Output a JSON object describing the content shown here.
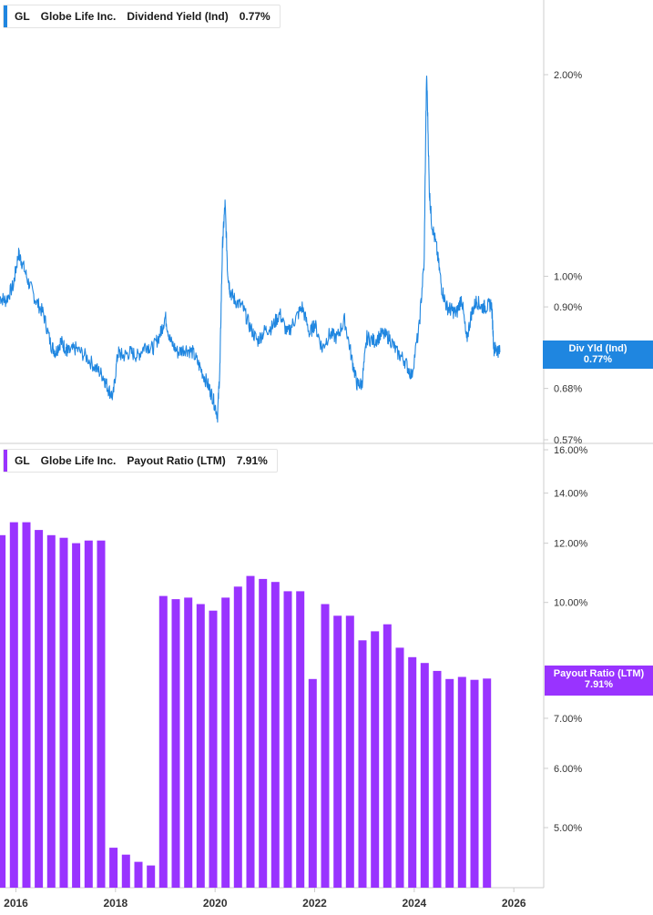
{
  "colors": {
    "yield": "#1f86e0",
    "payout": "#9933ff",
    "axis_text": "#333333",
    "divider": "#cccccc"
  },
  "yield_legend": {
    "ticker": "GL",
    "company": "Globe Life Inc.",
    "metric": "Dividend Yield (Ind)",
    "value": "0.77%"
  },
  "payout_legend": {
    "ticker": "GL",
    "company": "Globe Life Inc.",
    "metric": "Payout Ratio (LTM)",
    "value": "7.91%"
  },
  "yield_flag": {
    "label": "Div Yld (Ind)",
    "value": "0.77%"
  },
  "payout_flag": {
    "label": "Payout Ratio (LTM)",
    "value": "7.91%"
  },
  "chart_data": [
    {
      "type": "line",
      "title": "GL Globe Life Inc. Dividend Yield (Ind)",
      "scale": "log",
      "ylim": [
        0.57,
        2.5
      ],
      "y_ticks": [
        "0.57%",
        "0.68%",
        "0.90%",
        "1.00%",
        "2.00%"
      ],
      "x_ticks": [
        "2016",
        "2018",
        "2020",
        "2022",
        "2024",
        "2026"
      ],
      "xlim": [
        2015.68,
        2026.6
      ],
      "series": [
        {
          "name": "Dividend Yield (Ind)",
          "x": [
            2015.68,
            2015.8,
            2015.95,
            2016.05,
            2016.12,
            2016.25,
            2016.4,
            2016.55,
            2016.7,
            2016.8,
            2016.9,
            2017.0,
            2017.05,
            2017.2,
            2017.4,
            2017.6,
            2017.75,
            2017.85,
            2017.95,
            2018.05,
            2018.15,
            2018.3,
            2018.45,
            2018.6,
            2018.75,
            2018.9,
            2019.0,
            2019.1,
            2019.25,
            2019.4,
            2019.55,
            2019.7,
            2019.85,
            2019.95,
            2020.05,
            2020.1,
            2020.15,
            2020.2,
            2020.25,
            2020.3,
            2020.4,
            2020.55,
            2020.7,
            2020.85,
            2021.0,
            2021.15,
            2021.3,
            2021.45,
            2021.6,
            2021.75,
            2021.9,
            2022.0,
            2022.15,
            2022.3,
            2022.45,
            2022.6,
            2022.75,
            2022.85,
            2022.95,
            2023.05,
            2023.2,
            2023.35,
            2023.5,
            2023.65,
            2023.8,
            2023.95,
            2024.1,
            2024.2,
            2024.25,
            2024.3,
            2024.35,
            2024.45,
            2024.55,
            2024.65,
            2024.75,
            2024.85,
            2024.95,
            2025.05,
            2025.15,
            2025.25,
            2025.35,
            2025.45,
            2025.55,
            2025.6,
            2025.65,
            2025.72
          ],
          "values": [
            0.93,
            0.92,
            0.97,
            1.08,
            1.05,
            0.98,
            0.92,
            0.88,
            0.79,
            0.77,
            0.8,
            0.78,
            0.77,
            0.78,
            0.76,
            0.73,
            0.71,
            0.68,
            0.66,
            0.77,
            0.76,
            0.77,
            0.76,
            0.79,
            0.78,
            0.82,
            0.87,
            0.8,
            0.77,
            0.78,
            0.77,
            0.73,
            0.69,
            0.66,
            0.62,
            0.74,
            1.12,
            1.28,
            1.02,
            0.95,
            0.92,
            0.9,
            0.84,
            0.8,
            0.83,
            0.84,
            0.88,
            0.82,
            0.86,
            0.9,
            0.82,
            0.85,
            0.78,
            0.82,
            0.81,
            0.86,
            0.75,
            0.69,
            0.69,
            0.81,
            0.8,
            0.82,
            0.81,
            0.77,
            0.75,
            0.71,
            0.84,
            1.05,
            2.0,
            1.35,
            1.2,
            1.1,
            0.96,
            0.9,
            0.89,
            0.88,
            0.93,
            0.8,
            0.88,
            0.92,
            0.9,
            0.9,
            0.91,
            0.78,
            0.78,
            0.77
          ]
        }
      ]
    },
    {
      "type": "bar",
      "title": "GL Globe Life Inc. Payout Ratio (LTM)",
      "scale": "log",
      "ylim": [
        4.2,
        16.0
      ],
      "y_ticks": [
        "5.00%",
        "6.00%",
        "7.00%",
        "10.00%",
        "12.00%",
        "14.00%",
        "16.00%"
      ],
      "x_ticks": [
        "2016",
        "2018",
        "2020",
        "2022",
        "2024",
        "2026"
      ],
      "xlim": [
        2015.68,
        2026.6
      ],
      "series": [
        {
          "name": "Payout Ratio (LTM)",
          "x": [
            2015.71,
            2015.96,
            2016.21,
            2016.46,
            2016.71,
            2016.96,
            2017.21,
            2017.46,
            2017.71,
            2017.96,
            2018.21,
            2018.46,
            2018.71,
            2018.96,
            2019.21,
            2019.46,
            2019.71,
            2019.96,
            2020.21,
            2020.46,
            2020.71,
            2020.96,
            2021.21,
            2021.46,
            2021.71,
            2021.96,
            2022.21,
            2022.46,
            2022.71,
            2022.96,
            2023.21,
            2023.46,
            2023.71,
            2023.96,
            2024.21,
            2024.46,
            2024.71,
            2024.96,
            2025.21,
            2025.46
          ],
          "values": [
            12.3,
            12.8,
            12.8,
            12.5,
            12.3,
            12.2,
            12.0,
            12.1,
            12.1,
            4.7,
            4.6,
            4.5,
            4.45,
            10.2,
            10.1,
            10.15,
            9.95,
            9.75,
            10.15,
            10.5,
            10.85,
            10.75,
            10.65,
            10.35,
            10.35,
            7.9,
            9.95,
            9.6,
            9.6,
            8.9,
            9.15,
            9.35,
            8.7,
            8.45,
            8.3,
            8.1,
            7.9,
            7.95,
            7.88,
            7.91
          ]
        }
      ]
    }
  ]
}
